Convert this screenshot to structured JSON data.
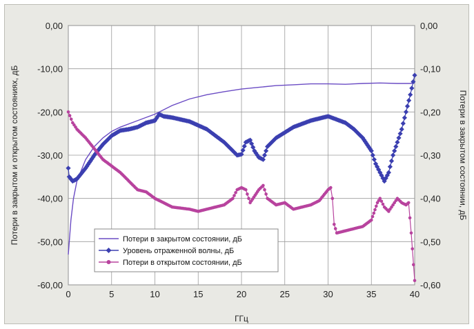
{
  "chart_data": {
    "type": "line",
    "xlabel": "ГГц",
    "ylabel_left": "Потери в закрытом и открытом состояниях, дБ",
    "ylabel_right": "Потери в закрытом состоянии, дБ",
    "xlim": [
      0,
      40
    ],
    "ylim_left": [
      -60,
      0
    ],
    "ylim_right": [
      -0.6,
      0
    ],
    "x_ticks": [
      "0",
      "5",
      "10",
      "15",
      "20",
      "25",
      "30",
      "35",
      "40"
    ],
    "y_ticks_left": [
      "0,00",
      "-10,00",
      "-20,00",
      "-30,00",
      "-40,00",
      "-50,00",
      "-60,00"
    ],
    "y_ticks_right": [
      "0,00",
      "-0,10",
      "-0,20",
      "-0,30",
      "-0,40",
      "-0,50",
      "-0,60"
    ],
    "grid": true,
    "legend_position": "bottom-left",
    "colors": {
      "closed": "#6a4bc4",
      "reflected": "#3b3fb0",
      "open": "#b8439e",
      "grid": "#9a9a9a",
      "plot_bg": "#ffffff",
      "frame_bg": "#e9e9e4"
    },
    "series": [
      {
        "name": "Потери в закрытом состоянии, дБ",
        "axis": "left",
        "marker": "none",
        "points": [
          [
            0,
            -53
          ],
          [
            0.3,
            -45
          ],
          [
            0.6,
            -40
          ],
          [
            1,
            -36
          ],
          [
            2,
            -31
          ],
          [
            3,
            -28
          ],
          [
            4,
            -26
          ],
          [
            5,
            -24.5
          ],
          [
            6,
            -23.5
          ],
          [
            8,
            -22
          ],
          [
            10,
            -20.5
          ],
          [
            12,
            -18.5
          ],
          [
            14,
            -17
          ],
          [
            16,
            -16
          ],
          [
            18,
            -15.3
          ],
          [
            20,
            -14.7
          ],
          [
            22,
            -14.3
          ],
          [
            24,
            -13.9
          ],
          [
            26,
            -13.7
          ],
          [
            28,
            -13.5
          ],
          [
            30,
            -13.5
          ],
          [
            32,
            -13.6
          ],
          [
            34,
            -13.4
          ],
          [
            36,
            -13.3
          ],
          [
            38,
            -13.4
          ],
          [
            39.5,
            -13.4
          ],
          [
            40,
            -13.3
          ]
        ]
      },
      {
        "name": "Уровень отраженной волны, дБ",
        "axis": "left",
        "marker": "diamond",
        "points": [
          [
            0,
            -33
          ],
          [
            0.1,
            -35
          ],
          [
            0.5,
            -36
          ],
          [
            1,
            -35.5
          ],
          [
            2,
            -33
          ],
          [
            3,
            -30
          ],
          [
            4,
            -27.5
          ],
          [
            5,
            -25.5
          ],
          [
            6,
            -24.3
          ],
          [
            7,
            -24
          ],
          [
            8,
            -23.5
          ],
          [
            9,
            -22.5
          ],
          [
            10,
            -22
          ],
          [
            10.5,
            -20.5
          ],
          [
            11,
            -21
          ],
          [
            12,
            -21.3
          ],
          [
            14,
            -22.2
          ],
          [
            16,
            -24
          ],
          [
            18,
            -27
          ],
          [
            19,
            -29
          ],
          [
            19.5,
            -30
          ],
          [
            20,
            -29.8
          ],
          [
            20.5,
            -27
          ],
          [
            21,
            -26.5
          ],
          [
            21.5,
            -29
          ],
          [
            22,
            -30.5
          ],
          [
            22.5,
            -31
          ],
          [
            23,
            -28
          ],
          [
            24,
            -26
          ],
          [
            26,
            -23.5
          ],
          [
            28,
            -22
          ],
          [
            30,
            -21
          ],
          [
            32,
            -22.5
          ],
          [
            33,
            -24
          ],
          [
            34,
            -26
          ],
          [
            35,
            -29
          ],
          [
            35.5,
            -32
          ],
          [
            36,
            -34
          ],
          [
            36.5,
            -36
          ],
          [
            37,
            -34
          ],
          [
            37.5,
            -30
          ],
          [
            38,
            -27
          ],
          [
            38.5,
            -24
          ],
          [
            39,
            -20
          ],
          [
            39.5,
            -16
          ],
          [
            40,
            -11.5
          ]
        ]
      },
      {
        "name": "Потери в открытом состоянии, дБ",
        "axis": "left",
        "marker": "dot",
        "points": [
          [
            0,
            -20
          ],
          [
            0.5,
            -22.5
          ],
          [
            1,
            -24
          ],
          [
            2,
            -26
          ],
          [
            3,
            -28.5
          ],
          [
            4,
            -31
          ],
          [
            5,
            -32.5
          ],
          [
            6,
            -34
          ],
          [
            7,
            -36
          ],
          [
            8,
            -38
          ],
          [
            9,
            -38.5
          ],
          [
            10,
            -40
          ],
          [
            11,
            -41
          ],
          [
            12,
            -42
          ],
          [
            14,
            -42.5
          ],
          [
            15,
            -43
          ],
          [
            16,
            -42.5
          ],
          [
            17,
            -42
          ],
          [
            18,
            -41.5
          ],
          [
            19,
            -40
          ],
          [
            19.5,
            -38
          ],
          [
            20,
            -37.5
          ],
          [
            20.5,
            -38
          ],
          [
            21,
            -41
          ],
          [
            22,
            -38
          ],
          [
            22.5,
            -37
          ],
          [
            23,
            -40
          ],
          [
            24,
            -41.5
          ],
          [
            25,
            -41
          ],
          [
            26,
            -42.5
          ],
          [
            27,
            -42
          ],
          [
            28,
            -41.5
          ],
          [
            29,
            -40.5
          ],
          [
            30,
            -38
          ],
          [
            30.3,
            -37.5
          ],
          [
            30.5,
            -40
          ],
          [
            30.7,
            -46
          ],
          [
            31,
            -48
          ],
          [
            32,
            -47.5
          ],
          [
            34,
            -46.5
          ],
          [
            35,
            -45
          ],
          [
            35.7,
            -41
          ],
          [
            36,
            -40
          ],
          [
            36.5,
            -42
          ],
          [
            37,
            -43
          ],
          [
            37.5,
            -41.5
          ],
          [
            38,
            -40
          ],
          [
            38.5,
            -41
          ],
          [
            39,
            -41.5
          ],
          [
            39.3,
            -41
          ],
          [
            39.6,
            -48
          ],
          [
            40,
            -59
          ]
        ]
      }
    ]
  }
}
